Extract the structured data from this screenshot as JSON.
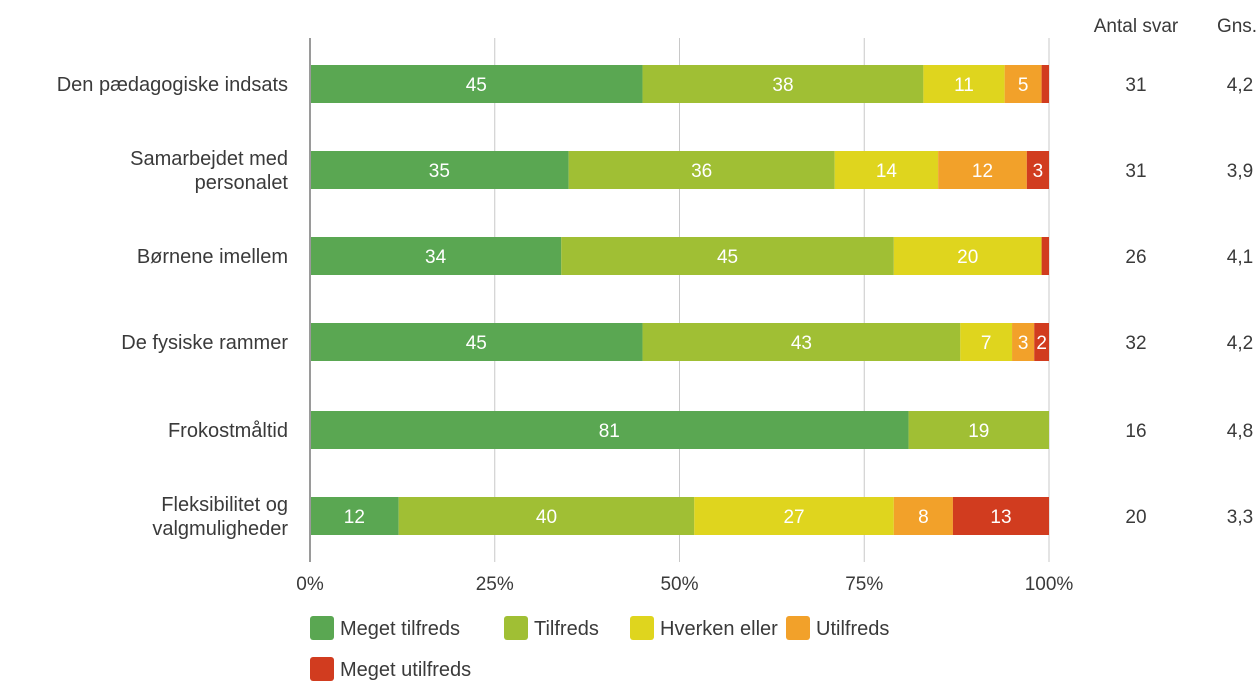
{
  "chart_data": {
    "type": "bar",
    "orientation": "horizontal",
    "stacked": true,
    "percent": true,
    "categories": [
      [
        "Den pædagogiske indsats"
      ],
      [
        "Samarbejdet med",
        "personalet"
      ],
      [
        "Børnene imellem"
      ],
      [
        "De fysiske rammer"
      ],
      [
        "Frokostmåltid"
      ],
      [
        "Fleksibilitet og",
        "valgmuligheder"
      ]
    ],
    "series": [
      {
        "name": "Meget tilfreds",
        "color": "#5aa752",
        "values": [
          45,
          35,
          34,
          45,
          81,
          12
        ]
      },
      {
        "name": "Tilfreds",
        "color": "#a0bf34",
        "values": [
          38,
          36,
          45,
          43,
          19,
          40
        ]
      },
      {
        "name": "Hverken eller",
        "color": "#dfd51e",
        "values": [
          11,
          14,
          20,
          7,
          0,
          27
        ]
      },
      {
        "name": "Utilfreds",
        "color": "#f2a12a",
        "values": [
          5,
          12,
          0,
          3,
          0,
          8
        ]
      },
      {
        "name": "Meget utilfreds",
        "color": "#d13c1f",
        "values": [
          1,
          3,
          1,
          2,
          0,
          13
        ]
      }
    ],
    "label_values": [
      [
        "45",
        "38",
        "11",
        "5",
        ""
      ],
      [
        "35",
        "36",
        "14",
        "12",
        "3"
      ],
      [
        "34",
        "45",
        "20",
        "",
        ""
      ],
      [
        "45",
        "43",
        "7",
        "3",
        "2"
      ],
      [
        "81",
        "19",
        "",
        "",
        ""
      ],
      [
        "12",
        "40",
        "27",
        "8",
        "13"
      ]
    ],
    "xlim": [
      0,
      100
    ],
    "xticks": [
      "0%",
      "25%",
      "50%",
      "75%",
      "100%"
    ],
    "grid": true,
    "legend_position": "bottom",
    "extra_columns": [
      {
        "header": "Antal svar",
        "values": [
          "31",
          "31",
          "26",
          "32",
          "16",
          "20"
        ]
      },
      {
        "header": "Gns.",
        "values": [
          "4,2",
          "3,9",
          "4,1",
          "4,2",
          "4,8",
          "3,3"
        ]
      }
    ]
  }
}
